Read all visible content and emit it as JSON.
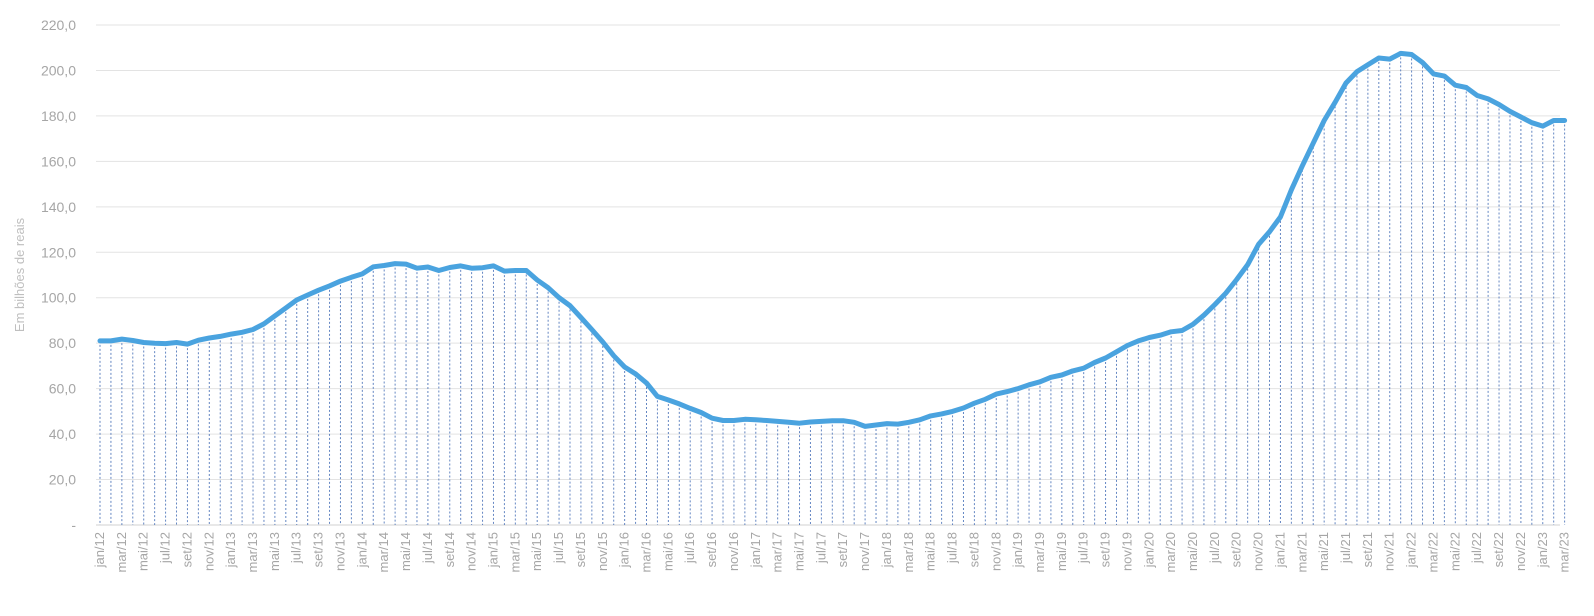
{
  "chart_data": {
    "type": "line",
    "title": "",
    "xlabel": "",
    "ylabel": "Em bilhões de reais",
    "ylim": [
      0,
      220
    ],
    "y_ticks": [
      "-",
      "20,0",
      "40,0",
      "60,0",
      "80,0",
      "100,0",
      "120,0",
      "140,0",
      "160,0",
      "180,0",
      "200,0",
      "220,0"
    ],
    "y_tick_values": [
      0,
      20,
      40,
      60,
      80,
      100,
      120,
      140,
      160,
      180,
      200,
      220
    ],
    "x_tick_labels": [
      "jan/12",
      "mar/12",
      "mai/12",
      "jul/12",
      "set/12",
      "nov/12",
      "jan/13",
      "mar/13",
      "mai/13",
      "jul/13",
      "set/13",
      "nov/13",
      "jan/14",
      "mar/14",
      "mai/14",
      "jul/14",
      "set/14",
      "nov/14",
      "jan/15",
      "mar/15",
      "mai/15",
      "jul/15",
      "set/15",
      "nov/15",
      "jan/16",
      "mar/16",
      "mai/16",
      "jul/16",
      "set/16",
      "nov/16",
      "jan/17",
      "mar/17",
      "mai/17",
      "jul/17",
      "set/17",
      "nov/17",
      "jan/18",
      "mar/18",
      "mai/18",
      "jul/18",
      "set/18",
      "nov/18",
      "jan/19",
      "mar/19",
      "mai/19",
      "jul/19",
      "set/19",
      "nov/19",
      "jan/20",
      "mar/20",
      "mai/20",
      "jul/20",
      "set/20",
      "nov/20",
      "jan/21",
      "mar/21",
      "mai/21",
      "jul/21",
      "set/21",
      "nov/21",
      "jan/22",
      "mar/22",
      "mai/22",
      "jul/22",
      "set/22",
      "nov/22",
      "jan/23",
      "mar/23"
    ],
    "grid": true,
    "drop_lines": true,
    "line_color": "#4aa3df",
    "grid_color": "#e3e3e3",
    "drop_line_color": "#4a72b8",
    "series": [
      {
        "values": [
          81.0,
          81.0,
          81.8,
          81.2,
          80.3,
          80.0,
          79.8,
          80.3,
          79.6,
          81.3,
          82.3,
          83.0,
          84.0,
          84.8,
          86.0,
          88.5,
          92.0,
          95.5,
          99.0,
          101.2,
          103.3,
          105.2,
          107.3,
          109.0,
          110.5,
          113.6,
          114.2,
          115.0,
          114.8,
          113.0,
          113.5,
          112.0,
          113.3,
          114.0,
          113.0,
          113.2,
          114.0,
          111.7,
          112.0,
          112.0,
          107.8,
          104.4,
          100.0,
          96.5,
          91.3,
          86.0,
          80.5,
          74.5,
          69.5,
          66.5,
          62.5,
          56.6,
          55.0,
          53.3,
          51.3,
          49.5,
          47.0,
          46.0,
          46.0,
          46.5,
          46.3,
          46.0,
          45.6,
          45.2,
          44.8,
          45.3,
          45.6,
          45.9,
          45.9,
          45.2,
          43.4,
          44.0,
          44.6,
          44.4,
          45.2,
          46.3,
          48.0,
          48.9,
          50.0,
          51.5,
          53.6,
          55.3,
          57.6,
          58.7,
          60.0,
          61.7,
          63.0,
          65.0,
          66.0,
          67.8,
          69.0,
          71.5,
          73.5,
          76.2,
          79.0,
          81.0,
          82.5,
          83.5,
          85.0,
          85.6,
          88.3,
          92.3,
          97.0,
          102.0,
          108.0,
          114.5,
          123.5,
          129.0,
          135.5,
          147.5,
          158.0,
          168.0,
          178.0,
          186.0,
          194.5,
          199.5,
          202.5,
          205.5,
          205.0,
          207.5,
          207.0,
          203.5,
          198.5,
          197.5,
          193.5,
          192.5,
          189.0,
          187.5,
          185.0,
          182.0,
          179.5,
          177.0,
          175.5,
          178.0,
          178.0
        ]
      }
    ]
  }
}
